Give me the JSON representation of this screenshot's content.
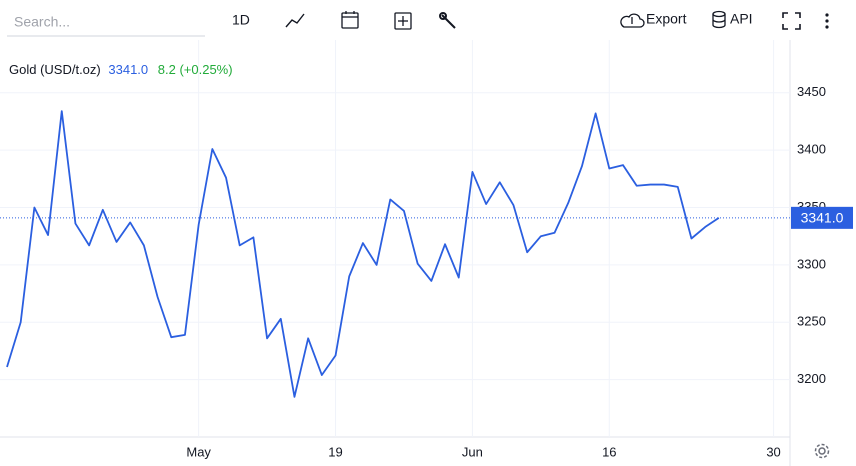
{
  "toolbar": {
    "search_placeholder": "Search...",
    "interval": "1D",
    "export": "Export",
    "api": "API"
  },
  "chart_data": {
    "type": "line",
    "title": "Gold (USD/t.oz)",
    "last_price": 3341,
    "last_price_label": "3341.0",
    "change_label": "8.2 (+0.25%)",
    "x": [
      0,
      1,
      2,
      3,
      4,
      5,
      6,
      7,
      8,
      9,
      10,
      11,
      12,
      13,
      14,
      15,
      16,
      17,
      18,
      19,
      20,
      21,
      22,
      23,
      24,
      25,
      26,
      27,
      28,
      29,
      30,
      31,
      32,
      33,
      34,
      35,
      36,
      37,
      38,
      39,
      40,
      41,
      42,
      43,
      44,
      45,
      46,
      47,
      48,
      49,
      50,
      51,
      52
    ],
    "series": [
      {
        "name": "Gold (USD/t.oz)",
        "color": "#2b5fe0",
        "values": [
          3211,
          3250,
          3350,
          3326,
          3434,
          3336,
          3317,
          3348,
          3320,
          3337,
          3317,
          3272,
          3237,
          3239,
          3335,
          3401,
          3376,
          3317,
          3324,
          3236,
          3253,
          3185,
          3236,
          3204,
          3221,
          3290,
          3319,
          3300,
          3357,
          3347,
          3301,
          3286,
          3318,
          3289,
          3381,
          3353,
          3372,
          3352,
          3311,
          3325,
          3328,
          3354,
          3386,
          3432,
          3384,
          3387,
          3369,
          3370,
          3370,
          3368,
          3323,
          3333,
          3341
        ]
      }
    ],
    "xlim": [
      0,
      57.2
    ],
    "xticks": [
      {
        "value": 14,
        "label": "May"
      },
      {
        "value": 24,
        "label": "19"
      },
      {
        "value": 34,
        "label": "Jun"
      },
      {
        "value": 44,
        "label": "16"
      },
      {
        "value": 56,
        "label": "30"
      }
    ],
    "ylim": [
      3150,
      3496
    ],
    "yticks": [
      3200,
      3250,
      3300,
      3350,
      3400,
      3450
    ],
    "grid": true
  }
}
